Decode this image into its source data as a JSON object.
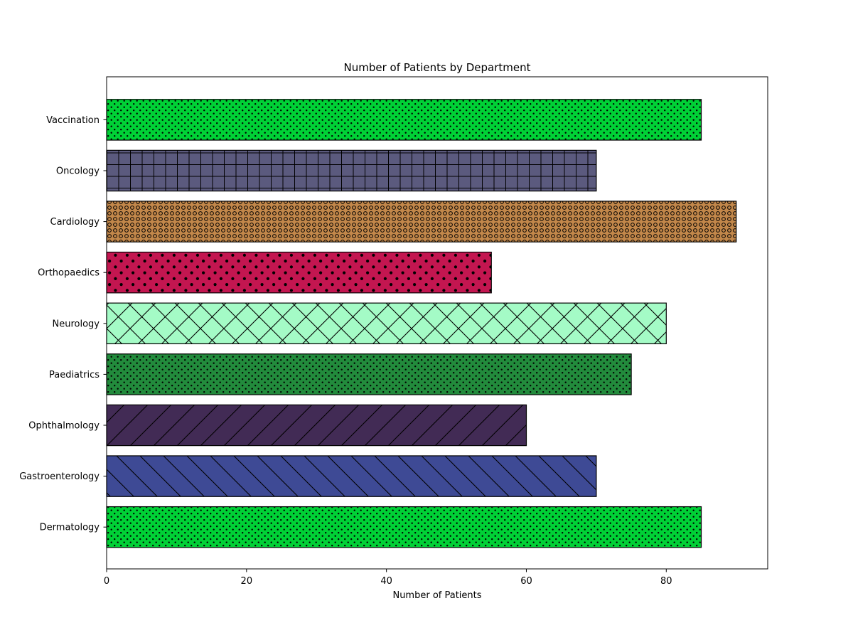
{
  "chart_data": {
    "type": "bar",
    "orientation": "horizontal",
    "title": "Number of Patients by Department",
    "xlabel": "Number of Patients",
    "ylabel": "",
    "xlim": [
      0,
      94.5
    ],
    "xticks": [
      0,
      20,
      40,
      60,
      80
    ],
    "grid": false,
    "categories": [
      "Dermatology",
      "Gastroenterology",
      "Ophthalmology",
      "Paediatrics",
      "Neurology",
      "Orthopaedics",
      "Cardiology",
      "Oncology",
      "Vaccination"
    ],
    "values": [
      85,
      70,
      60,
      75,
      80,
      55,
      90,
      70,
      85
    ],
    "colors": [
      "#00d136",
      "#3e4a95",
      "#422b55",
      "#228b3c",
      "#a4fbc6",
      "#c31650",
      "#c2874a",
      "#5b5a7e",
      "#00d136"
    ],
    "hatches": [
      "small-dots",
      "backslash",
      "slash",
      "small-dots",
      "crosshatch-diagonal",
      "large-dots",
      "circles",
      "grid",
      "small-dots"
    ]
  }
}
